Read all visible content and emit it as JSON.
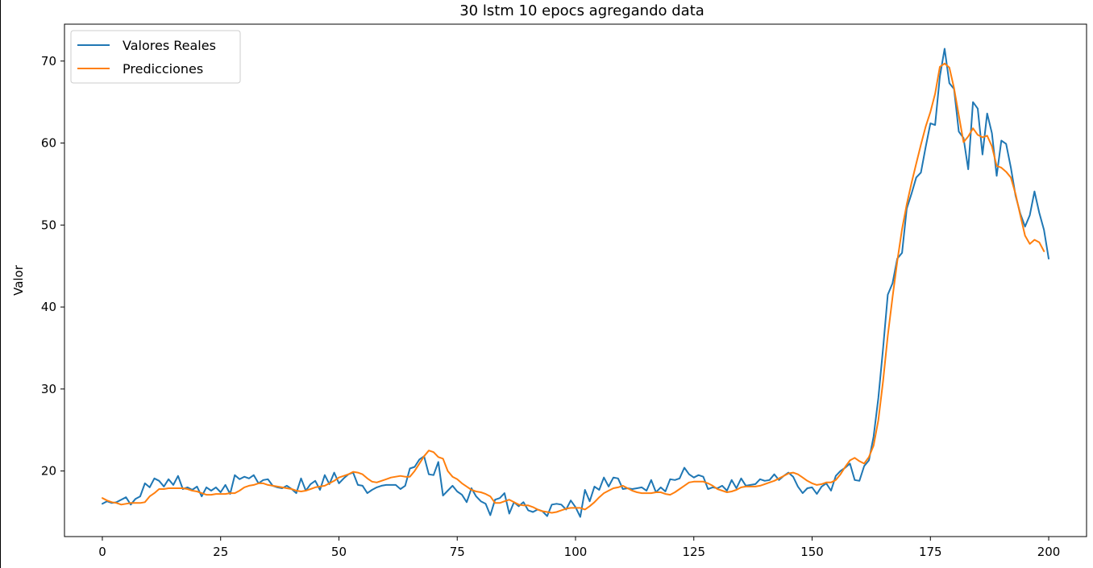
{
  "chart_data": {
    "type": "line",
    "title": "30 lstm 10 epocs agregando data",
    "xlabel": "",
    "ylabel": "Valor",
    "xlim": [
      -8,
      208
    ],
    "ylim": [
      12,
      74.5
    ],
    "xticks": [
      0,
      25,
      50,
      75,
      100,
      125,
      150,
      175,
      200
    ],
    "yticks": [
      20,
      30,
      40,
      50,
      60,
      70
    ],
    "grid": false,
    "legend": "top-left",
    "colors": {
      "reales": "#1f77b4",
      "predicciones": "#ff7f0e"
    },
    "series": [
      {
        "name": "Valores Reales",
        "values": [
          16.0,
          16.3,
          16.1,
          16.2,
          16.5,
          16.8,
          15.9,
          16.6,
          16.9,
          18.5,
          18.0,
          19.1,
          18.8,
          18.1,
          19.0,
          18.3,
          19.4,
          17.8,
          18.0,
          17.7,
          18.1,
          16.9,
          18.0,
          17.6,
          18.0,
          17.4,
          18.3,
          17.2,
          19.5,
          19.0,
          19.3,
          19.1,
          19.5,
          18.5,
          18.9,
          19.0,
          18.2,
          18.0,
          17.9,
          18.2,
          17.8,
          17.3,
          19.1,
          17.6,
          18.4,
          18.8,
          17.7,
          19.5,
          18.4,
          19.8,
          18.5,
          19.1,
          19.6,
          19.8,
          18.3,
          18.2,
          17.3,
          17.7,
          18.0,
          18.2,
          18.3,
          18.3,
          18.3,
          17.8,
          18.2,
          20.3,
          20.5,
          21.4,
          21.8,
          19.6,
          19.5,
          21.1,
          17.0,
          17.6,
          18.2,
          17.5,
          17.1,
          16.2,
          17.9,
          16.9,
          16.3,
          16.0,
          14.6,
          16.5,
          16.7,
          17.3,
          14.8,
          16.2,
          15.7,
          16.2,
          15.2,
          15.0,
          15.3,
          15.1,
          14.5,
          15.9,
          16.0,
          15.9,
          15.3,
          16.4,
          15.6,
          14.4,
          17.7,
          16.3,
          18.1,
          17.7,
          19.2,
          18.1,
          19.2,
          19.1,
          17.8,
          17.9,
          17.8,
          17.9,
          18.0,
          17.6,
          18.9,
          17.4,
          18.0,
          17.5,
          19.0,
          18.9,
          19.1,
          20.4,
          19.6,
          19.2,
          19.5,
          19.3,
          17.8,
          18.0,
          17.9,
          18.2,
          17.6,
          18.9,
          17.9,
          19.1,
          18.2,
          18.3,
          18.4,
          19.0,
          18.8,
          18.9,
          19.6,
          18.9,
          19.4,
          19.8,
          19.3,
          18.1,
          17.3,
          17.9,
          18.0,
          17.2,
          18.1,
          18.5,
          17.6,
          19.4,
          20.0,
          20.4,
          20.9,
          18.9,
          18.8,
          20.6,
          21.3,
          24.2,
          28.9,
          35.0,
          41.5,
          42.9,
          45.9,
          46.6,
          52.0,
          53.8,
          55.8,
          56.4,
          59.5,
          62.4,
          62.2,
          68.1,
          71.5,
          67.3,
          66.6,
          61.4,
          60.6,
          56.8,
          65.0,
          64.2,
          58.6,
          63.6,
          61.2,
          56.0,
          60.3,
          59.9,
          57.0,
          53.6,
          51.4,
          49.8,
          51.2,
          54.1,
          51.5,
          49.4,
          45.9
        ]
      },
      {
        "name": "Predicciones",
        "values": [
          16.7,
          16.4,
          16.2,
          16.1,
          15.9,
          16.0,
          16.1,
          16.1,
          16.1,
          16.2,
          16.9,
          17.3,
          17.8,
          17.8,
          17.9,
          17.9,
          17.9,
          17.9,
          17.8,
          17.6,
          17.5,
          17.3,
          17.1,
          17.1,
          17.2,
          17.2,
          17.2,
          17.3,
          17.3,
          17.6,
          18.0,
          18.2,
          18.3,
          18.5,
          18.5,
          18.3,
          18.2,
          18.1,
          18.0,
          17.9,
          17.8,
          17.6,
          17.5,
          17.6,
          17.8,
          18.0,
          18.1,
          18.2,
          18.5,
          18.8,
          19.2,
          19.4,
          19.6,
          19.9,
          19.8,
          19.6,
          19.1,
          18.7,
          18.6,
          18.8,
          19.0,
          19.2,
          19.3,
          19.4,
          19.3,
          19.3,
          20.0,
          20.9,
          21.8,
          22.5,
          22.3,
          21.7,
          21.5,
          20.0,
          19.3,
          19.0,
          18.5,
          18.1,
          17.7,
          17.5,
          17.4,
          17.2,
          16.9,
          16.1,
          16.1,
          16.3,
          16.5,
          16.2,
          15.9,
          15.8,
          15.8,
          15.6,
          15.3,
          15.1,
          15.0,
          14.9,
          15.0,
          15.2,
          15.4,
          15.5,
          15.5,
          15.5,
          15.3,
          15.7,
          16.2,
          16.8,
          17.3,
          17.6,
          17.9,
          18.0,
          18.2,
          17.9,
          17.6,
          17.4,
          17.3,
          17.3,
          17.3,
          17.4,
          17.4,
          17.2,
          17.1,
          17.4,
          17.8,
          18.2,
          18.6,
          18.7,
          18.7,
          18.7,
          18.5,
          18.2,
          17.8,
          17.6,
          17.4,
          17.5,
          17.7,
          18.0,
          18.1,
          18.1,
          18.1,
          18.2,
          18.4,
          18.6,
          18.8,
          19.1,
          19.4,
          19.7,
          19.8,
          19.6,
          19.2,
          18.8,
          18.5,
          18.3,
          18.4,
          18.6,
          18.6,
          18.9,
          19.6,
          20.5,
          21.3,
          21.6,
          21.2,
          20.9,
          21.7,
          23.1,
          26.2,
          31.0,
          36.5,
          41.2,
          45.6,
          49.5,
          52.5,
          55.1,
          57.5,
          59.8,
          62.0,
          63.8,
          66.0,
          69.3,
          69.7,
          69.2,
          66.7,
          63.4,
          60.1,
          60.8,
          61.8,
          61.0,
          60.7,
          60.9,
          59.6,
          57.2,
          57.0,
          56.5,
          55.8,
          53.8,
          51.2,
          48.7,
          47.7,
          48.2,
          47.9,
          46.8
        ]
      }
    ]
  }
}
